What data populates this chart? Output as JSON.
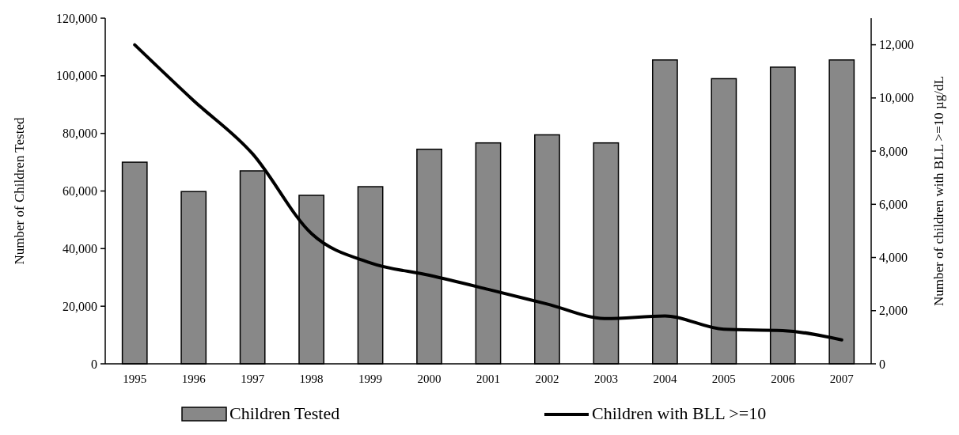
{
  "chart_data": {
    "type": "bar",
    "ylabel": "Number of Children Tested",
    "y2label": "Number of children with BLL >=10 µg/dL",
    "categories": [
      "1995",
      "1996",
      "1997",
      "1998",
      "1999",
      "2000",
      "2001",
      "2002",
      "2003",
      "2004",
      "2005",
      "2006",
      "2007"
    ],
    "series": [
      {
        "name": "Children Tested",
        "color": "#888888",
        "values": [
          70000,
          59800,
          67000,
          58500,
          61500,
          74500,
          76700,
          79500,
          76700,
          105500,
          99000,
          103000,
          105500
        ]
      },
      {
        "name": "Children with BLL >=10",
        "type": "line",
        "axis": "y2",
        "color": "#000000",
        "values": [
          12000,
          9900,
          7900,
          4900,
          3800,
          3330,
          2800,
          2250,
          1700,
          1800,
          1300,
          1250,
          900
        ]
      }
    ],
    "ylim": [
      0,
      120000
    ],
    "yticks": [
      {
        "value": 0,
        "label": "0"
      },
      {
        "value": 20000,
        "label": "20,000"
      },
      {
        "value": 40000,
        "label": "40,000"
      },
      {
        "value": 60000,
        "label": "60,000"
      },
      {
        "value": 80000,
        "label": "80,000"
      },
      {
        "value": 100000,
        "label": "100,000"
      },
      {
        "value": 120000,
        "label": "120,000"
      }
    ],
    "y2lim": [
      0,
      13000
    ],
    "y2ticks": [
      {
        "value": 0,
        "label": "0"
      },
      {
        "value": 2000,
        "label": "2,000"
      },
      {
        "value": 4000,
        "label": "4,000"
      },
      {
        "value": 6000,
        "label": "6,000"
      },
      {
        "value": 8000,
        "label": "8,000"
      },
      {
        "value": 10000,
        "label": "10,000"
      },
      {
        "value": 12000,
        "label": "12,000"
      }
    ],
    "legend": "bottom",
    "grid": false,
    "marker": "none",
    "line_style": "solid"
  }
}
